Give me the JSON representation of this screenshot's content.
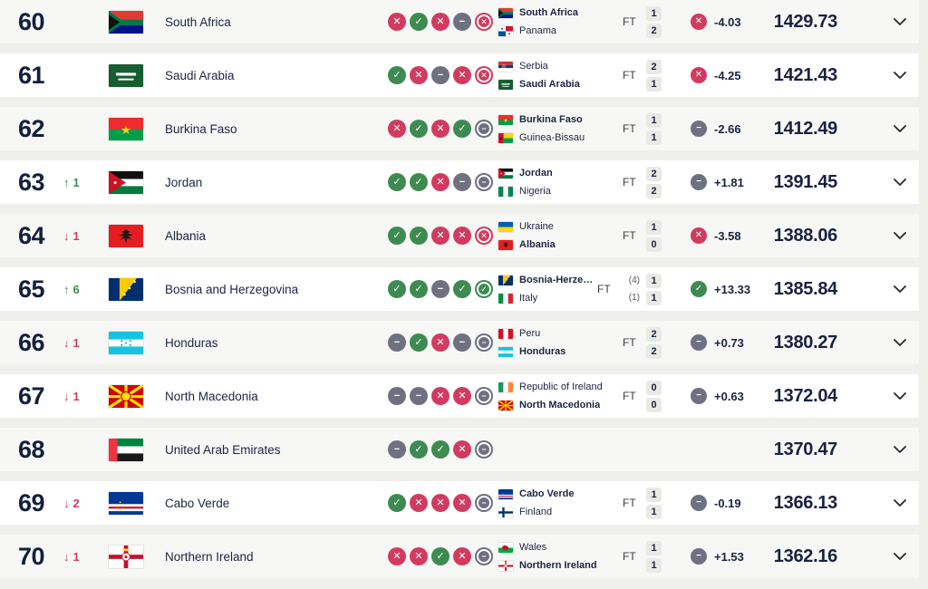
{
  "colors": {
    "navy_text": "#19223f",
    "win_green": "#3e8b52",
    "loss_red": "#d23b5f",
    "draw_gray": "#6f7080",
    "row_bg": "#ffffff",
    "row_alt_bg": "#f7f7f5",
    "page_bg": "#efefec",
    "score_box_bg": "#e9e9e6"
  },
  "table": {
    "rows": [
      {
        "rank": "60",
        "change": null,
        "country": {
          "name": "South Africa",
          "flag": "zaf"
        },
        "form": [
          {
            "result": "loss",
            "style": "filled"
          },
          {
            "result": "win",
            "style": "filled"
          },
          {
            "result": "loss",
            "style": "filled"
          },
          {
            "result": "draw",
            "style": "filled"
          },
          {
            "result": "loss",
            "style": "ring"
          }
        ],
        "last_match": {
          "home": {
            "name": "South Africa",
            "flag": "zaf",
            "bold": true,
            "pen": ""
          },
          "away": {
            "name": "Panama",
            "flag": "pan",
            "bold": false,
            "pen": ""
          },
          "status": "FT",
          "home_score": "1",
          "away_score": "2"
        },
        "points_change": {
          "result": "loss",
          "value": "-4.03"
        },
        "total_points": "1429.73"
      },
      {
        "rank": "61",
        "change": null,
        "country": {
          "name": "Saudi Arabia",
          "flag": "sau"
        },
        "form": [
          {
            "result": "win",
            "style": "filled"
          },
          {
            "result": "loss",
            "style": "filled"
          },
          {
            "result": "draw",
            "style": "filled"
          },
          {
            "result": "loss",
            "style": "filled"
          },
          {
            "result": "loss",
            "style": "ring"
          }
        ],
        "last_match": {
          "home": {
            "name": "Serbia",
            "flag": "srb",
            "bold": false,
            "pen": ""
          },
          "away": {
            "name": "Saudi Arabia",
            "flag": "sau",
            "bold": true,
            "pen": ""
          },
          "status": "FT",
          "home_score": "2",
          "away_score": "1"
        },
        "points_change": {
          "result": "loss",
          "value": "-4.25"
        },
        "total_points": "1421.43"
      },
      {
        "rank": "62",
        "change": null,
        "country": {
          "name": "Burkina Faso",
          "flag": "bfa"
        },
        "form": [
          {
            "result": "loss",
            "style": "filled"
          },
          {
            "result": "win",
            "style": "filled"
          },
          {
            "result": "loss",
            "style": "filled"
          },
          {
            "result": "win",
            "style": "filled"
          },
          {
            "result": "draw",
            "style": "ring"
          }
        ],
        "last_match": {
          "home": {
            "name": "Burkina Faso",
            "flag": "bfa",
            "bold": true,
            "pen": ""
          },
          "away": {
            "name": "Guinea-Bissau",
            "flag": "gnb",
            "bold": false,
            "pen": ""
          },
          "status": "FT",
          "home_score": "1",
          "away_score": "1"
        },
        "points_change": {
          "result": "draw",
          "value": "-2.66"
        },
        "total_points": "1412.49"
      },
      {
        "rank": "63",
        "change": {
          "dir": "up",
          "value": "1"
        },
        "country": {
          "name": "Jordan",
          "flag": "jor"
        },
        "form": [
          {
            "result": "win",
            "style": "filled"
          },
          {
            "result": "win",
            "style": "filled"
          },
          {
            "result": "loss",
            "style": "filled"
          },
          {
            "result": "draw",
            "style": "filled"
          },
          {
            "result": "draw",
            "style": "ring"
          }
        ],
        "last_match": {
          "home": {
            "name": "Jordan",
            "flag": "jor",
            "bold": true,
            "pen": ""
          },
          "away": {
            "name": "Nigeria",
            "flag": "nga",
            "bold": false,
            "pen": ""
          },
          "status": "FT",
          "home_score": "2",
          "away_score": "2"
        },
        "points_change": {
          "result": "draw",
          "value": "+1.81"
        },
        "total_points": "1391.45"
      },
      {
        "rank": "64",
        "change": {
          "dir": "down",
          "value": "1"
        },
        "country": {
          "name": "Albania",
          "flag": "alb"
        },
        "form": [
          {
            "result": "win",
            "style": "filled"
          },
          {
            "result": "win",
            "style": "filled"
          },
          {
            "result": "loss",
            "style": "filled"
          },
          {
            "result": "loss",
            "style": "filled"
          },
          {
            "result": "loss",
            "style": "ring"
          }
        ],
        "last_match": {
          "home": {
            "name": "Ukraine",
            "flag": "ukr",
            "bold": false,
            "pen": ""
          },
          "away": {
            "name": "Albania",
            "flag": "alb",
            "bold": true,
            "pen": ""
          },
          "status": "FT",
          "home_score": "1",
          "away_score": "0"
        },
        "points_change": {
          "result": "loss",
          "value": "-3.58"
        },
        "total_points": "1388.06"
      },
      {
        "rank": "65",
        "change": {
          "dir": "up",
          "value": "6"
        },
        "country": {
          "name": "Bosnia and Herzegovina",
          "flag": "bih"
        },
        "form": [
          {
            "result": "win",
            "style": "filled"
          },
          {
            "result": "win",
            "style": "filled"
          },
          {
            "result": "draw",
            "style": "filled"
          },
          {
            "result": "win",
            "style": "filled"
          },
          {
            "result": "win",
            "style": "ring"
          }
        ],
        "last_match": {
          "home": {
            "name": "Bosnia-Herzegovi…",
            "flag": "bih",
            "bold": true,
            "pen": "(4)"
          },
          "away": {
            "name": "Italy",
            "flag": "ita",
            "bold": false,
            "pen": "(1)"
          },
          "status": "FT",
          "home_score": "1",
          "away_score": "1"
        },
        "points_change": {
          "result": "win",
          "value": "+13.33"
        },
        "total_points": "1385.84"
      },
      {
        "rank": "66",
        "change": {
          "dir": "down",
          "value": "1"
        },
        "country": {
          "name": "Honduras",
          "flag": "hnd"
        },
        "form": [
          {
            "result": "draw",
            "style": "filled"
          },
          {
            "result": "win",
            "style": "filled"
          },
          {
            "result": "loss",
            "style": "filled"
          },
          {
            "result": "draw",
            "style": "filled"
          },
          {
            "result": "draw",
            "style": "ring"
          }
        ],
        "last_match": {
          "home": {
            "name": "Peru",
            "flag": "per",
            "bold": false,
            "pen": ""
          },
          "away": {
            "name": "Honduras",
            "flag": "hnd",
            "bold": true,
            "pen": ""
          },
          "status": "FT",
          "home_score": "2",
          "away_score": "2"
        },
        "points_change": {
          "result": "draw",
          "value": "+0.73"
        },
        "total_points": "1380.27"
      },
      {
        "rank": "67",
        "change": {
          "dir": "down",
          "value": "1"
        },
        "country": {
          "name": "North Macedonia",
          "flag": "mkd"
        },
        "form": [
          {
            "result": "draw",
            "style": "filled"
          },
          {
            "result": "draw",
            "style": "filled"
          },
          {
            "result": "loss",
            "style": "filled"
          },
          {
            "result": "loss",
            "style": "filled"
          },
          {
            "result": "draw",
            "style": "ring"
          }
        ],
        "last_match": {
          "home": {
            "name": "Republic of Ireland",
            "flag": "irl",
            "bold": false,
            "pen": ""
          },
          "away": {
            "name": "North Macedonia",
            "flag": "mkd",
            "bold": true,
            "pen": ""
          },
          "status": "FT",
          "home_score": "0",
          "away_score": "0"
        },
        "points_change": {
          "result": "draw",
          "value": "+0.63"
        },
        "total_points": "1372.04"
      },
      {
        "rank": "68",
        "change": null,
        "country": {
          "name": "United Arab Emirates",
          "flag": "are"
        },
        "form": [
          {
            "result": "draw",
            "style": "filled"
          },
          {
            "result": "win",
            "style": "filled"
          },
          {
            "result": "win",
            "style": "filled"
          },
          {
            "result": "loss",
            "style": "filled"
          },
          {
            "result": "draw",
            "style": "ring"
          }
        ],
        "last_match": null,
        "points_change": null,
        "total_points": "1370.47"
      },
      {
        "rank": "69",
        "change": {
          "dir": "down",
          "value": "2"
        },
        "country": {
          "name": "Cabo Verde",
          "flag": "cpv"
        },
        "form": [
          {
            "result": "win",
            "style": "filled"
          },
          {
            "result": "loss",
            "style": "filled"
          },
          {
            "result": "loss",
            "style": "filled"
          },
          {
            "result": "loss",
            "style": "filled"
          },
          {
            "result": "draw",
            "style": "ring"
          }
        ],
        "last_match": {
          "home": {
            "name": "Cabo Verde",
            "flag": "cpv",
            "bold": true,
            "pen": ""
          },
          "away": {
            "name": "Finland",
            "flag": "fin",
            "bold": false,
            "pen": ""
          },
          "status": "FT",
          "home_score": "1",
          "away_score": "1"
        },
        "points_change": {
          "result": "draw",
          "value": "-0.19"
        },
        "total_points": "1366.13"
      },
      {
        "rank": "70",
        "change": {
          "dir": "down",
          "value": "1"
        },
        "country": {
          "name": "Northern Ireland",
          "flag": "nir"
        },
        "form": [
          {
            "result": "loss",
            "style": "filled"
          },
          {
            "result": "loss",
            "style": "filled"
          },
          {
            "result": "win",
            "style": "filled"
          },
          {
            "result": "loss",
            "style": "filled"
          },
          {
            "result": "draw",
            "style": "ring"
          }
        ],
        "last_match": {
          "home": {
            "name": "Wales",
            "flag": "wal",
            "bold": false,
            "pen": ""
          },
          "away": {
            "name": "Northern Ireland",
            "flag": "nir",
            "bold": true,
            "pen": ""
          },
          "status": "FT",
          "home_score": "1",
          "away_score": "1"
        },
        "points_change": {
          "result": "draw",
          "value": "+1.53"
        },
        "total_points": "1362.16"
      }
    ]
  }
}
